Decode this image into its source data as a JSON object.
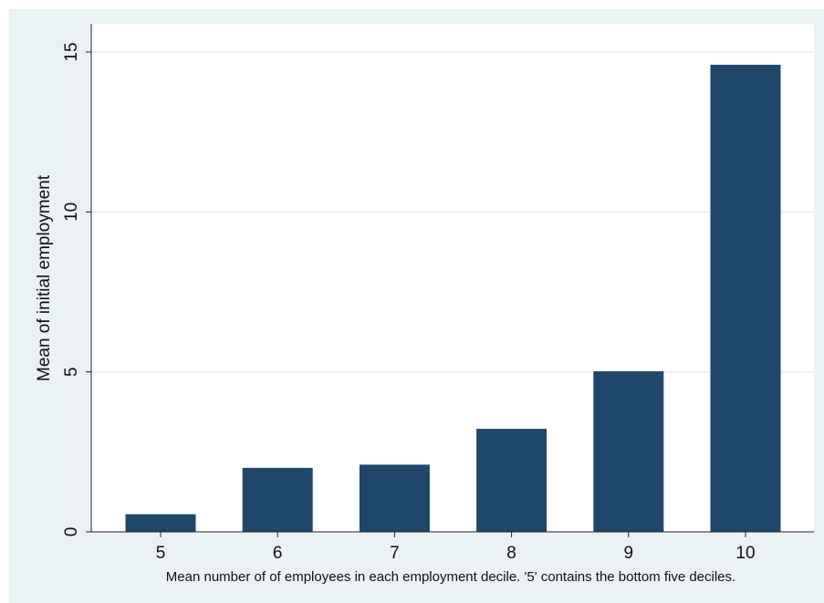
{
  "chart_data": {
    "type": "bar",
    "categories": [
      "5",
      "6",
      "7",
      "8",
      "9",
      "10"
    ],
    "values": [
      0.55,
      2.0,
      2.1,
      3.22,
      5.02,
      14.6
    ],
    "title": "",
    "xlabel": "Mean number of of employees in each employment decile. '5' contains the bottom five deciles.",
    "ylabel": "Mean of initial employment",
    "ylim": [
      0,
      15
    ],
    "yticks": [
      0,
      5,
      10,
      15
    ],
    "grid": true,
    "legend": "none",
    "colors": {
      "bar": "#1f476c",
      "plot_background": "#ffffff",
      "outer_background": "#eaf2f3",
      "grid": "#e9eef0"
    }
  }
}
